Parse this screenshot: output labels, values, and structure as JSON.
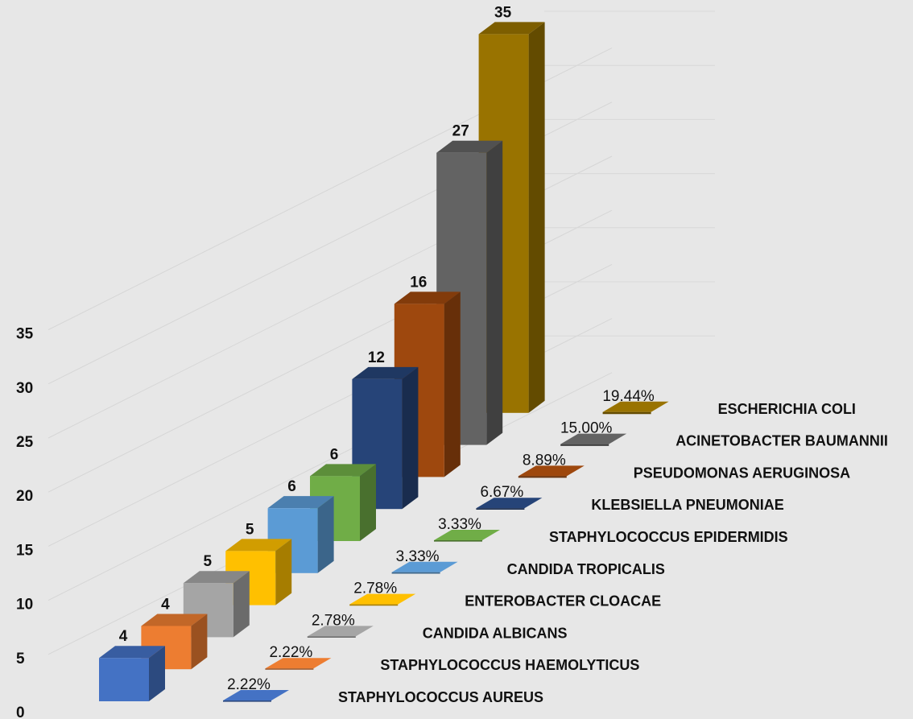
{
  "chart_data": {
    "type": "bar",
    "title": "",
    "xlabel": "",
    "ylabel": "",
    "ylim": [
      0,
      35
    ],
    "y_ticks": [
      "0",
      "5",
      "10",
      "15",
      "20",
      "25",
      "30",
      "35"
    ],
    "categories": [
      "STAPHYLOCOCCUS AUREUS",
      "STAPHYLOCOCCUS HAEMOLYTICUS",
      "CANDIDA ALBICANS",
      "ENTEROBACTER CLOACAE",
      "CANDIDA TROPICALIS",
      "STAPHYLOCOCCUS EPIDERMIDIS",
      "KLEBSIELLA PNEUMONIAE",
      "PSEUDOMONAS AERUGINOSA",
      "ACINETOBACTER BAUMANNII",
      "ESCHERICHIA COLI"
    ],
    "series": [
      {
        "values": [
          4,
          4,
          5,
          5,
          6,
          6,
          12,
          16,
          27,
          35
        ],
        "labels": [
          "4",
          "4",
          "5",
          "5",
          "6",
          "6",
          "12",
          "16",
          "27",
          "35"
        ]
      },
      {
        "values": [
          2.22,
          2.22,
          2.78,
          2.78,
          3.33,
          3.33,
          6.67,
          8.89,
          15.0,
          19.44
        ],
        "labels": [
          "2.22%",
          "2.22%",
          "2.78%",
          "2.78%",
          "3.33%",
          "3.33%",
          "6.67%",
          "8.89%",
          "15.00%",
          "19.44%"
        ]
      }
    ],
    "colors": [
      "#4472c4",
      "#ed7d31",
      "#a5a5a5",
      "#ffc000",
      "#5b9bd5",
      "#70ad47",
      "#264478",
      "#9e480e",
      "#636363",
      "#997300"
    ],
    "grid": true,
    "legend": "none"
  }
}
